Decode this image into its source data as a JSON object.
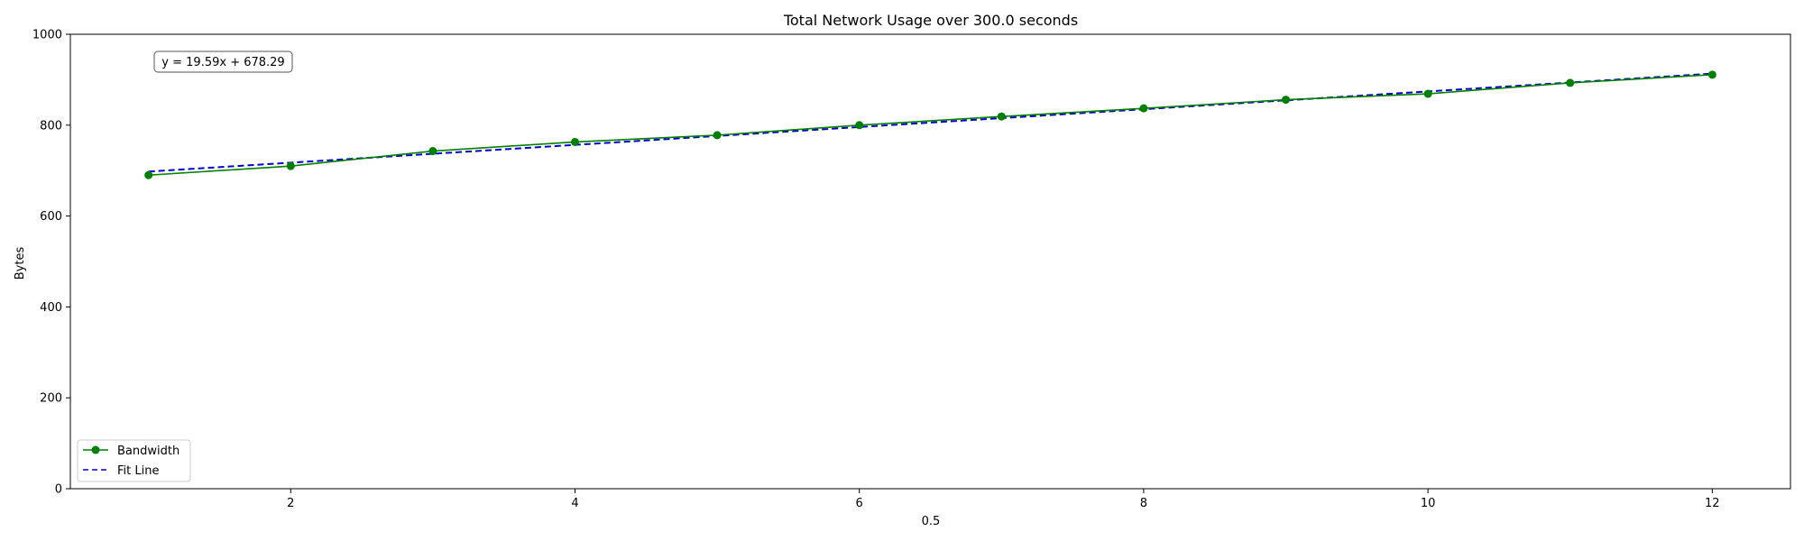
{
  "chart_data": {
    "type": "line",
    "title": "Total Network Usage over 300.0 seconds",
    "xlabel": "0.5",
    "ylabel": "Bytes",
    "xlim": [
      0.45,
      12.55
    ],
    "ylim": [
      0,
      1000
    ],
    "x_ticks": [
      2,
      4,
      6,
      8,
      10,
      12
    ],
    "y_ticks": [
      0,
      200,
      400,
      600,
      800,
      1000
    ],
    "grid": false,
    "legend_position": "lower-left",
    "annotation": "y = 19.59x + 678.29",
    "series": [
      {
        "name": "Bandwidth",
        "style": "solid-with-markers",
        "color": "#008000",
        "x": [
          1,
          2,
          3,
          4,
          5,
          6,
          7,
          8,
          9,
          10,
          11,
          12
        ],
        "values": [
          690,
          710,
          743,
          763,
          778,
          800,
          819,
          837,
          856,
          869,
          893,
          911
        ]
      },
      {
        "name": "Fit Line",
        "style": "dashed",
        "color": "#0000cc",
        "x": [
          1,
          12
        ],
        "values": [
          697.88,
          913.37
        ]
      }
    ]
  }
}
